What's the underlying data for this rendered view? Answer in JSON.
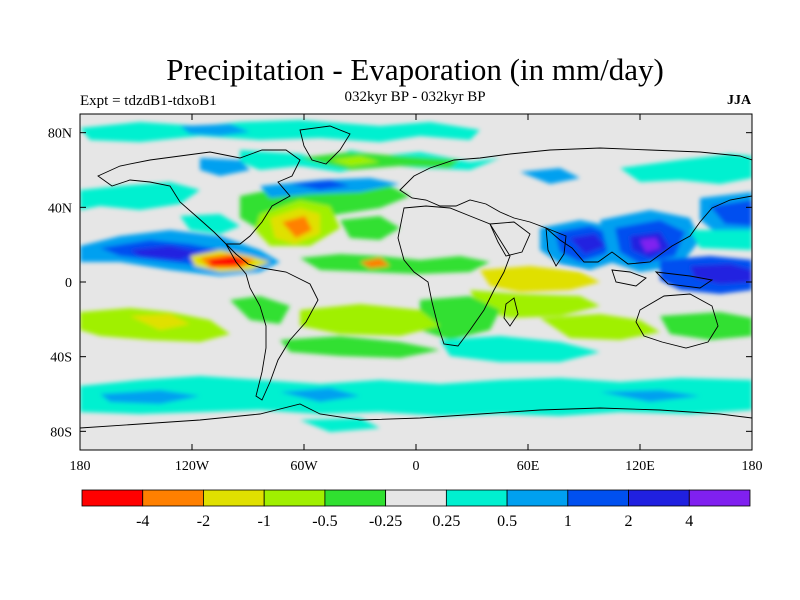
{
  "title": "Precipitation - Evaporation (in mm/day)",
  "left_subtitle": "Expt = tdzdB1-tdxoB1",
  "center_subtitle": "032kyr BP - 032kyr BP",
  "right_subtitle": "JJA",
  "map": {
    "lat_labels": [
      "80N",
      "40N",
      "0",
      "40S",
      "80S"
    ],
    "lat_values": [
      80,
      40,
      0,
      -40,
      -80
    ],
    "lon_labels": [
      "180",
      "120W",
      "60W",
      "0",
      "60E",
      "120E",
      "180"
    ],
    "lon_values": [
      -180,
      -120,
      -60,
      0,
      60,
      120,
      180
    ],
    "lon_range": [
      -180,
      180
    ],
    "lat_range": [
      -90,
      90
    ],
    "background_color": "#e6e6e6"
  },
  "colorbar": {
    "levels": [
      "-4",
      "-2",
      "-1",
      "-0.5",
      "-0.25",
      "0.25",
      "0.5",
      "1",
      "2",
      "4"
    ],
    "colors": [
      "#ff0000",
      "#ff8000",
      "#e0e000",
      "#a0f000",
      "#30e030",
      "#e6e6e6",
      "#00f0d0",
      "#00a0f0",
      "#0050f0",
      "#2020e0",
      "#8020f0"
    ]
  }
}
